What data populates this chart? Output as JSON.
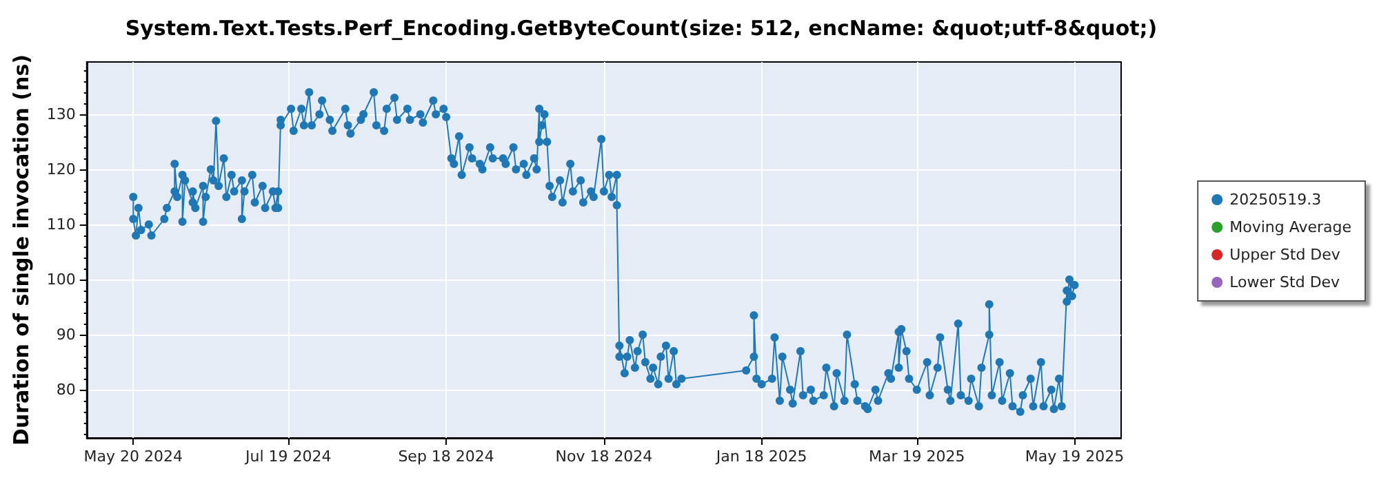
{
  "chart_data": {
    "type": "line",
    "title": "System.Text.Tests.Perf_Encoding.GetByteCount(size: 512, encName: &quot;utf-8&quot;)",
    "ylabel": "Duration of single invocation (ns)",
    "xlim": [
      "2024-05-02",
      "2025-06-06"
    ],
    "xticks": [
      {
        "value": "2024-05-20",
        "label": "May 20 2024"
      },
      {
        "value": "2024-07-19",
        "label": "Jul 19 2024"
      },
      {
        "value": "2024-09-18",
        "label": "Sep 18 2024"
      },
      {
        "value": "2024-11-18",
        "label": "Nov 18 2024"
      },
      {
        "value": "2025-01-18",
        "label": "Jan 18 2025"
      },
      {
        "value": "2025-03-19",
        "label": "Mar 19 2025"
      },
      {
        "value": "2025-05-19",
        "label": "May 19 2025"
      }
    ],
    "ylim": [
      71.25,
      139.5
    ],
    "yticks": [
      80,
      90,
      100,
      110,
      120,
      130
    ],
    "grid": true,
    "legend": "right",
    "marker": "circle",
    "series": [
      {
        "name": "20250519.3",
        "color": "#1f77b4",
        "x": [
          "2024-05-20",
          "2024-05-20",
          "2024-05-21",
          "2024-05-22",
          "2024-05-23",
          "2024-05-26",
          "2024-05-27",
          "2024-06-01",
          "2024-06-02",
          "2024-06-05",
          "2024-06-05",
          "2024-06-06",
          "2024-06-08",
          "2024-06-08",
          "2024-06-09",
          "2024-06-12",
          "2024-06-12",
          "2024-06-13",
          "2024-06-16",
          "2024-06-16",
          "2024-06-17",
          "2024-06-19",
          "2024-06-20",
          "2024-06-21",
          "2024-06-22",
          "2024-06-24",
          "2024-06-25",
          "2024-06-27",
          "2024-06-28",
          "2024-07-01",
          "2024-07-01",
          "2024-07-02",
          "2024-07-05",
          "2024-07-06",
          "2024-07-09",
          "2024-07-10",
          "2024-07-13",
          "2024-07-14",
          "2024-07-15",
          "2024-07-15",
          "2024-07-16",
          "2024-07-16",
          "2024-07-20",
          "2024-07-21",
          "2024-07-24",
          "2024-07-25",
          "2024-07-27",
          "2024-07-28",
          "2024-07-31",
          "2024-08-01",
          "2024-08-04",
          "2024-08-05",
          "2024-08-10",
          "2024-08-11",
          "2024-08-12",
          "2024-08-16",
          "2024-08-17",
          "2024-08-21",
          "2024-08-22",
          "2024-08-25",
          "2024-08-26",
          "2024-08-29",
          "2024-08-30",
          "2024-09-03",
          "2024-09-04",
          "2024-09-08",
          "2024-09-09",
          "2024-09-13",
          "2024-09-14",
          "2024-09-17",
          "2024-09-18",
          "2024-09-20",
          "2024-09-21",
          "2024-09-23",
          "2024-09-24",
          "2024-09-27",
          "2024-09-28",
          "2024-10-01",
          "2024-10-02",
          "2024-10-05",
          "2024-10-06",
          "2024-10-10",
          "2024-10-11",
          "2024-10-14",
          "2024-10-15",
          "2024-10-18",
          "2024-10-19",
          "2024-10-22",
          "2024-10-23",
          "2024-10-24",
          "2024-10-24",
          "2024-10-25",
          "2024-10-26",
          "2024-10-27",
          "2024-10-28",
          "2024-10-29",
          "2024-11-01",
          "2024-11-02",
          "2024-11-05",
          "2024-11-06",
          "2024-11-09",
          "2024-11-10",
          "2024-11-13",
          "2024-11-14",
          "2024-11-17",
          "2024-11-18",
          "2024-11-20",
          "2024-11-21",
          "2024-11-23",
          "2024-11-23",
          "2024-11-24",
          "2024-11-24",
          "2024-11-26",
          "2024-11-27",
          "2024-11-28",
          "2024-11-30",
          "2024-12-01",
          "2024-12-03",
          "2024-12-04",
          "2024-12-06",
          "2024-12-07",
          "2024-12-09",
          "2024-12-10",
          "2024-12-12",
          "2024-12-13",
          "2024-12-15",
          "2024-12-16",
          "2024-12-18",
          "2025-01-12",
          "2025-01-15",
          "2025-01-15",
          "2025-01-16",
          "2025-01-18",
          "2025-01-22",
          "2025-01-23",
          "2025-01-25",
          "2025-01-26",
          "2025-01-29",
          "2025-01-30",
          "2025-02-02",
          "2025-02-03",
          "2025-02-06",
          "2025-02-07",
          "2025-02-11",
          "2025-02-12",
          "2025-02-15",
          "2025-02-16",
          "2025-02-19",
          "2025-02-20",
          "2025-02-23",
          "2025-02-24",
          "2025-02-27",
          "2025-02-28",
          "2025-03-03",
          "2025-03-04",
          "2025-03-08",
          "2025-03-09",
          "2025-03-12",
          "2025-03-12",
          "2025-03-13",
          "2025-03-15",
          "2025-03-16",
          "2025-03-19",
          "2025-03-23",
          "2025-03-24",
          "2025-03-27",
          "2025-03-28",
          "2025-03-31",
          "2025-04-01",
          "2025-04-04",
          "2025-04-05",
          "2025-04-08",
          "2025-04-09",
          "2025-04-12",
          "2025-04-13",
          "2025-04-16",
          "2025-04-16",
          "2025-04-17",
          "2025-04-20",
          "2025-04-21",
          "2025-04-24",
          "2025-04-25",
          "2025-04-28",
          "2025-04-29",
          "2025-05-02",
          "2025-05-03",
          "2025-05-06",
          "2025-05-07",
          "2025-05-10",
          "2025-05-11",
          "2025-05-13",
          "2025-05-14",
          "2025-05-16",
          "2025-05-16",
          "2025-05-17",
          "2025-05-18",
          "2025-05-19"
        ],
        "values": [
          115,
          111,
          108,
          113,
          109,
          110,
          108,
          111,
          113,
          116,
          121,
          115,
          119,
          110.5,
          118,
          114,
          116,
          113,
          117,
          110.5,
          115,
          120,
          118,
          128.8,
          117,
          122,
          115,
          119,
          116,
          118,
          111,
          116,
          119,
          114,
          117,
          113,
          116,
          113,
          116,
          113,
          129,
          128,
          131,
          127,
          131,
          128,
          134,
          128,
          130,
          132.5,
          129,
          127,
          131,
          128,
          126.5,
          129,
          130,
          134,
          128,
          127,
          131,
          133,
          129,
          131,
          129,
          130,
          128.5,
          132.5,
          130,
          131,
          129.5,
          122,
          121,
          126,
          119,
          124,
          122,
          121,
          120,
          124,
          122,
          122,
          121,
          124,
          120,
          121,
          119,
          122,
          120,
          131,
          125,
          128,
          130,
          125,
          117,
          115,
          118,
          114,
          121,
          116,
          118,
          114,
          116,
          115,
          125.5,
          116,
          119,
          115,
          119,
          113.5,
          86,
          88,
          83,
          86,
          89,
          84,
          87,
          90,
          85,
          82,
          84,
          81,
          86,
          88,
          82,
          87,
          81,
          82,
          83.5,
          86,
          93.5,
          82,
          81,
          82,
          89.5,
          78,
          86,
          80,
          77.5,
          87,
          79,
          80,
          78,
          79,
          84,
          77,
          83,
          78,
          90,
          81,
          78,
          77,
          76.5,
          80,
          78,
          83,
          82,
          90.5,
          84,
          91,
          87,
          82,
          80,
          85,
          79,
          84,
          89.5,
          80,
          78,
          92,
          79,
          78,
          82,
          77,
          84,
          90,
          95.5,
          79,
          85,
          78,
          83,
          77,
          76,
          79,
          82,
          77,
          85,
          77,
          80,
          76.5,
          82,
          77,
          98,
          96,
          100,
          97,
          99
        ]
      },
      {
        "name": "Moving Average",
        "color": "#2ca02c"
      },
      {
        "name": "Upper Std Dev",
        "color": "#d62728"
      },
      {
        "name": "Lower Std Dev",
        "color": "#9467bd"
      }
    ]
  }
}
